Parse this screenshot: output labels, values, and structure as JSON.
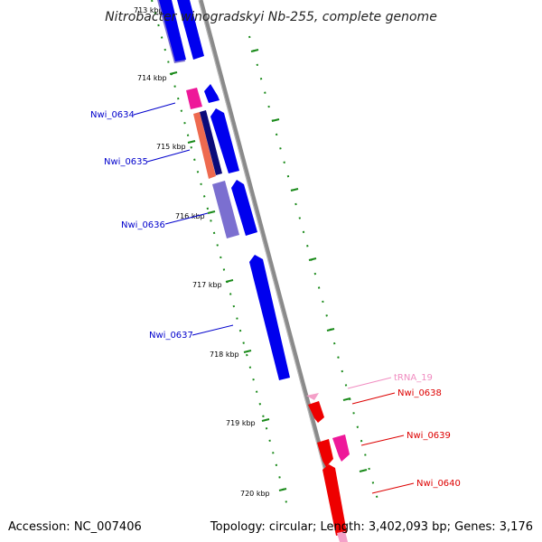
{
  "title": "Nitrobacter winogradskyi Nb-255, complete genome",
  "footer": {
    "accession": "Accession: NC_007406",
    "topology": "Topology: circular; Length: 3,402,093 bp; Genes: 3,176"
  },
  "colors": {
    "backbone": "#8a8a8a",
    "tick": "#1a8a1a",
    "blue_gene": "#0000ee",
    "navy_gene": "#0b0b7a",
    "violet_gene": "#7b6fd0",
    "salmon_gene": "#ee6a4f",
    "pink_gene": "#ee1899",
    "red_gene": "#ee0000",
    "trna_gene": "#f4a0c8",
    "blue_label": "#0000cc",
    "red_label": "#dd0000",
    "trna_label": "#f08cc0"
  },
  "scale": {
    "top_partial": "713 kbp",
    "ticks": [
      "714 kbp",
      "715 kbp",
      "716 kbp",
      "717 kbp",
      "718 kbp",
      "719 kbp",
      "720 kbp"
    ]
  },
  "labels": [
    {
      "text": "Nwi_0634",
      "kind": "blue"
    },
    {
      "text": "Nwi_0635",
      "kind": "blue"
    },
    {
      "text": "Nwi_0636",
      "kind": "blue"
    },
    {
      "text": "Nwi_0637",
      "kind": "blue"
    },
    {
      "text": "tRNA_19",
      "kind": "trna"
    },
    {
      "text": "Nwi_0638",
      "kind": "red"
    },
    {
      "text": "Nwi_0639",
      "kind": "red"
    },
    {
      "text": "Nwi_0640",
      "kind": "red"
    }
  ]
}
